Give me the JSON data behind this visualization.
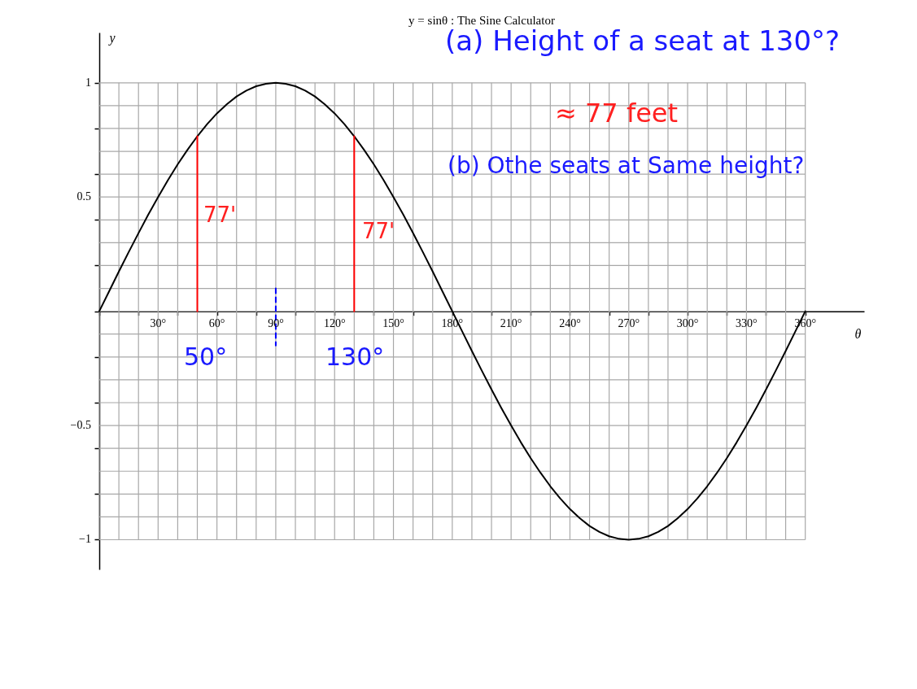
{
  "chart_data": {
    "type": "line",
    "title": "y = sinθ : The Sine Calculator",
    "xlabel": "θ",
    "ylabel": "y",
    "x": [
      0,
      5,
      10,
      15,
      20,
      25,
      30,
      35,
      40,
      45,
      50,
      55,
      60,
      65,
      70,
      75,
      80,
      85,
      90,
      95,
      100,
      105,
      110,
      115,
      120,
      125,
      130,
      135,
      140,
      145,
      150,
      155,
      160,
      165,
      170,
      175,
      180,
      185,
      190,
      195,
      200,
      205,
      210,
      215,
      220,
      225,
      230,
      235,
      240,
      245,
      250,
      255,
      260,
      265,
      270,
      275,
      280,
      285,
      290,
      295,
      300,
      305,
      310,
      315,
      320,
      325,
      330,
      335,
      340,
      345,
      350,
      355,
      360
    ],
    "series": [
      {
        "color": "#000000",
        "values": [
          0,
          0.087,
          0.174,
          0.259,
          0.342,
          0.423,
          0.5,
          0.574,
          0.643,
          0.707,
          0.766,
          0.819,
          0.866,
          0.906,
          0.94,
          0.966,
          0.985,
          0.996,
          1,
          0.996,
          0.985,
          0.966,
          0.94,
          0.906,
          0.866,
          0.819,
          0.766,
          0.707,
          0.643,
          0.574,
          0.5,
          0.423,
          0.342,
          0.259,
          0.174,
          0.087,
          0,
          -0.087,
          -0.174,
          -0.259,
          -0.342,
          -0.423,
          -0.5,
          -0.574,
          -0.643,
          -0.707,
          -0.766,
          -0.819,
          -0.866,
          -0.906,
          -0.94,
          -0.966,
          -0.985,
          -0.996,
          -1,
          -0.996,
          -0.985,
          -0.966,
          -0.94,
          -0.906,
          -0.866,
          -0.819,
          -0.766,
          -0.707,
          -0.643,
          -0.574,
          -0.5,
          -0.423,
          -0.342,
          -0.259,
          -0.174,
          -0.087,
          0
        ]
      },
      {
        "color": "#ff0000",
        "x": [
          50,
          50
        ],
        "values": [
          0,
          0.766
        ]
      },
      {
        "color": "#ff0000",
        "x": [
          130,
          130
        ],
        "values": [
          0,
          0.766
        ]
      },
      {
        "color": "#0000ff",
        "x": [
          90,
          90
        ],
        "values": [
          0.1,
          -0.15
        ],
        "line_style": "dashed"
      }
    ],
    "annotations": [
      "(a) Height of a seat at 130°?",
      "≈ 77 feet",
      "(b) Othe seats at Same height?",
      "77'",
      "77'",
      "50°",
      "130°"
    ],
    "xlim": [
      0,
      390
    ],
    "ylim": [
      -1.13,
      1.22
    ],
    "xticks": [
      {
        "value": 0,
        "label": null
      },
      {
        "value": 10,
        "label": null
      },
      {
        "value": 20,
        "label": null
      },
      {
        "value": 30,
        "label": "30°"
      },
      {
        "value": 40,
        "label": null
      },
      {
        "value": 50,
        "label": null
      },
      {
        "value": 60,
        "label": "60°"
      },
      {
        "value": 70,
        "label": null
      },
      {
        "value": 80,
        "label": null
      },
      {
        "value": 90,
        "label": "90°"
      },
      {
        "value": 100,
        "label": null
      },
      {
        "value": 110,
        "label": null
      },
      {
        "value": 120,
        "label": "120°"
      },
      {
        "value": 130,
        "label": null
      },
      {
        "value": 140,
        "label": null
      },
      {
        "value": 150,
        "label": "150°"
      },
      {
        "value": 160,
        "label": null
      },
      {
        "value": 170,
        "label": null
      },
      {
        "value": 180,
        "label": "180°"
      },
      {
        "value": 190,
        "label": null
      },
      {
        "value": 200,
        "label": null
      },
      {
        "value": 210,
        "label": "210°"
      },
      {
        "value": 220,
        "label": null
      },
      {
        "value": 230,
        "label": null
      },
      {
        "value": 240,
        "label": "240°"
      },
      {
        "value": 250,
        "label": null
      },
      {
        "value": 260,
        "label": null
      },
      {
        "value": 270,
        "label": "270°"
      },
      {
        "value": 280,
        "label": null
      },
      {
        "value": 290,
        "label": null
      },
      {
        "value": 300,
        "label": "300°"
      },
      {
        "value": 310,
        "label": null
      },
      {
        "value": 320,
        "label": null
      },
      {
        "value": 330,
        "label": "330°"
      },
      {
        "value": 340,
        "label": null
      },
      {
        "value": 350,
        "label": null
      },
      {
        "value": 360,
        "label": "360°"
      }
    ],
    "yticks": [
      {
        "value": -1,
        "label": "−1"
      },
      {
        "value": -0.9,
        "label": null
      },
      {
        "value": -0.8,
        "label": null
      },
      {
        "value": -0.7,
        "label": null
      },
      {
        "value": -0.6,
        "label": null
      },
      {
        "value": -0.5,
        "label": "−0.5"
      },
      {
        "value": -0.4,
        "label": null
      },
      {
        "value": -0.3,
        "label": null
      },
      {
        "value": -0.2,
        "label": null
      },
      {
        "value": -0.1,
        "label": null
      },
      {
        "value": 0,
        "label": null
      },
      {
        "value": 0.1,
        "label": null
      },
      {
        "value": 0.2,
        "label": null
      },
      {
        "value": 0.3,
        "label": null
      },
      {
        "value": 0.4,
        "label": null
      },
      0.5,
      {
        "value": 0.6,
        "label": null
      },
      {
        "value": 0.7,
        "label": null
      },
      {
        "value": 0.8,
        "label": null
      },
      {
        "value": 0.9,
        "label": null
      },
      1
    ],
    "grid": true
  }
}
